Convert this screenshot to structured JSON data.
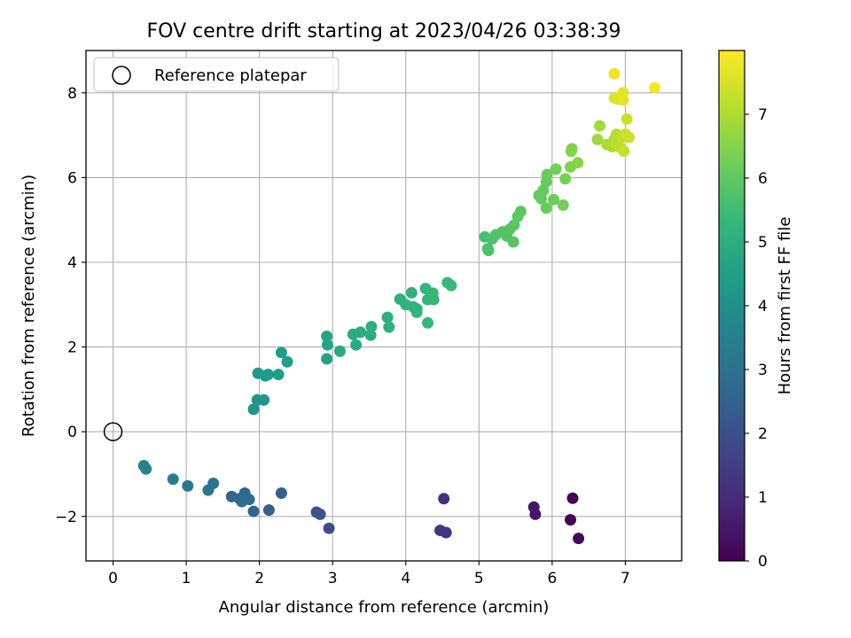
{
  "chart_data": {
    "type": "scatter",
    "title": "FOV centre drift starting at 2023/04/26 03:38:39",
    "xlabel": "Angular distance from reference (arcmin)",
    "ylabel": "Rotation from reference (arcmin)",
    "xlim": [
      -0.37,
      7.77
    ],
    "ylim": [
      -3.05,
      9.0
    ],
    "xticks": [
      0,
      1,
      2,
      3,
      4,
      5,
      6,
      7
    ],
    "xtick_labels": [
      "0",
      "1",
      "2",
      "3",
      "4",
      "5",
      "6",
      "7"
    ],
    "yticks": [
      -2,
      0,
      2,
      4,
      6,
      8
    ],
    "ytick_labels": [
      "−2",
      "0",
      "2",
      "4",
      "6",
      "8"
    ],
    "grid": true,
    "legend": {
      "position": "top-left",
      "entries": [
        "Reference platepar"
      ]
    },
    "reference_point": {
      "x": 0,
      "y": 0
    },
    "colorbar": {
      "label": "Hours from first FF file",
      "range": [
        0,
        8.0
      ],
      "ticks": [
        0,
        1,
        2,
        3,
        4,
        5,
        6,
        7
      ],
      "tick_labels": [
        "0",
        "1",
        "2",
        "3",
        "4",
        "5",
        "6",
        "7"
      ],
      "colormap": "viridis"
    },
    "points": [
      [
        6.28,
        -1.57,
        0.05
      ],
      [
        6.25,
        -2.08,
        0.1
      ],
      [
        6.36,
        -2.52,
        0.15
      ],
      [
        5.75,
        -1.78,
        0.45
      ],
      [
        5.77,
        -1.95,
        0.5
      ],
      [
        4.52,
        -1.58,
        1.1
      ],
      [
        4.47,
        -2.33,
        1.2
      ],
      [
        4.55,
        -2.38,
        1.25
      ],
      [
        2.95,
        -2.28,
        1.85
      ],
      [
        2.78,
        -1.9,
        2.1
      ],
      [
        2.83,
        -1.95,
        2.15
      ],
      [
        2.3,
        -1.45,
        2.4
      ],
      [
        2.13,
        -1.85,
        2.45
      ],
      [
        1.92,
        -1.88,
        2.55
      ],
      [
        1.62,
        -1.53,
        2.65
      ],
      [
        1.73,
        -1.58,
        2.7
      ],
      [
        1.8,
        -1.45,
        2.75
      ],
      [
        1.76,
        -1.65,
        2.8
      ],
      [
        1.86,
        -1.6,
        2.85
      ],
      [
        1.37,
        -1.22,
        3.0
      ],
      [
        1.3,
        -1.38,
        3.05
      ],
      [
        1.02,
        -1.28,
        3.25
      ],
      [
        0.82,
        -1.12,
        3.35
      ],
      [
        0.42,
        -0.8,
        3.55
      ],
      [
        0.45,
        -0.88,
        3.6
      ],
      [
        1.92,
        0.53,
        4.1
      ],
      [
        1.97,
        0.75,
        4.15
      ],
      [
        2.06,
        0.75,
        4.2
      ],
      [
        1.98,
        1.38,
        4.3
      ],
      [
        2.08,
        1.32,
        4.35
      ],
      [
        2.12,
        1.35,
        4.35
      ],
      [
        2.26,
        1.35,
        4.4
      ],
      [
        2.3,
        1.87,
        4.4
      ],
      [
        2.38,
        1.65,
        4.45
      ],
      [
        2.92,
        1.72,
        4.6
      ],
      [
        2.92,
        2.25,
        4.65
      ],
      [
        2.93,
        2.05,
        4.7
      ],
      [
        3.1,
        1.9,
        4.8
      ],
      [
        3.28,
        2.3,
        4.85
      ],
      [
        3.32,
        2.05,
        4.9
      ],
      [
        3.38,
        2.35,
        4.95
      ],
      [
        3.52,
        2.28,
        5.0
      ],
      [
        3.53,
        2.48,
        5.05
      ],
      [
        3.75,
        2.7,
        5.05
      ],
      [
        3.77,
        2.47,
        5.1
      ],
      [
        3.92,
        3.13,
        5.1
      ],
      [
        4.0,
        3.0,
        5.15
      ],
      [
        4.08,
        3.28,
        5.15
      ],
      [
        4.1,
        2.95,
        5.2
      ],
      [
        4.15,
        2.9,
        5.2
      ],
      [
        4.15,
        2.82,
        5.25
      ],
      [
        4.27,
        3.38,
        5.25
      ],
      [
        4.3,
        3.12,
        5.3
      ],
      [
        4.3,
        2.57,
        5.3
      ],
      [
        4.38,
        3.12,
        5.3
      ],
      [
        4.37,
        3.27,
        5.35
      ],
      [
        4.57,
        3.52,
        5.35
      ],
      [
        4.62,
        3.45,
        5.4
      ],
      [
        5.08,
        4.6,
        5.6
      ],
      [
        5.12,
        4.32,
        5.65
      ],
      [
        5.13,
        4.28,
        5.7
      ],
      [
        5.18,
        4.55,
        5.7
      ],
      [
        5.23,
        4.65,
        5.75
      ],
      [
        5.32,
        4.72,
        5.8
      ],
      [
        5.38,
        4.62,
        5.8
      ],
      [
        5.42,
        4.78,
        5.85
      ],
      [
        5.47,
        4.48,
        5.85
      ],
      [
        5.48,
        4.88,
        5.9
      ],
      [
        5.53,
        5.08,
        5.95
      ],
      [
        5.57,
        5.2,
        5.95
      ],
      [
        5.82,
        5.58,
        6.0
      ],
      [
        5.85,
        5.5,
        6.05
      ],
      [
        5.88,
        5.7,
        6.05
      ],
      [
        5.92,
        5.28,
        6.1
      ],
      [
        5.92,
        5.9,
        6.1
      ],
      [
        5.93,
        6.07,
        6.15
      ],
      [
        6.02,
        5.48,
        6.2
      ],
      [
        6.05,
        6.2,
        6.25
      ],
      [
        6.15,
        5.35,
        6.3
      ],
      [
        6.18,
        5.97,
        6.35
      ],
      [
        6.25,
        6.25,
        6.45
      ],
      [
        6.26,
        6.62,
        6.5
      ],
      [
        6.27,
        6.68,
        6.5
      ],
      [
        6.35,
        6.35,
        6.55
      ],
      [
        6.62,
        6.9,
        6.85
      ],
      [
        6.65,
        7.22,
        6.9
      ],
      [
        6.75,
        6.78,
        6.95
      ],
      [
        6.82,
        6.73,
        7.0
      ],
      [
        6.85,
        6.9,
        7.05
      ],
      [
        6.88,
        7.02,
        7.1
      ],
      [
        6.9,
        6.85,
        7.15
      ],
      [
        6.92,
        6.72,
        7.2
      ],
      [
        6.95,
        6.95,
        7.25
      ],
      [
        6.98,
        6.62,
        7.3
      ],
      [
        7.0,
        7.02,
        7.35
      ],
      [
        7.02,
        7.38,
        7.4
      ],
      [
        7.05,
        6.95,
        7.45
      ],
      [
        6.85,
        7.88,
        7.55
      ],
      [
        6.9,
        7.85,
        7.6
      ],
      [
        6.97,
        8.0,
        7.65
      ],
      [
        6.97,
        7.83,
        7.7
      ],
      [
        6.85,
        8.45,
        7.8
      ],
      [
        7.4,
        8.12,
        7.9
      ]
    ]
  }
}
